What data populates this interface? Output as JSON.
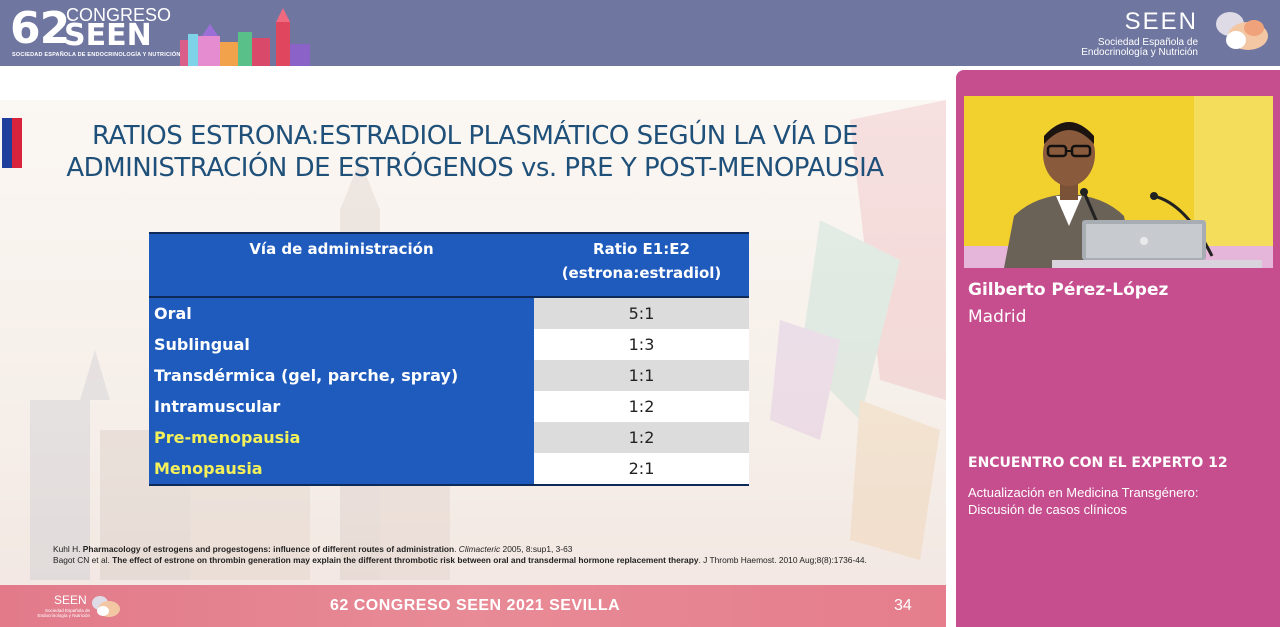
{
  "header": {
    "logo_number": "62",
    "logo_word_1": "CONGRESO",
    "logo_word_2": "SEEN",
    "logo_subtitle": "SOCIEDAD ESPAÑOLA DE ENDOCRINOLOGÍA Y NUTRICIÓN",
    "society_name": "SEEN",
    "society_sub_1": "Sociedad Española de",
    "society_sub_2": "Endocrinología y Nutrición"
  },
  "slide": {
    "title_line_1": "RATIOS ESTRONA:ESTRADIOL PLASMÁTICO SEGÚN LA VÍA DE",
    "title_line_2": "ADMINISTRACIÓN DE ESTRÓGENOS vs. PRE Y POST-MENOPAUSIA",
    "table": {
      "header_route": "Vía de administración",
      "header_ratio_1": "Ratio E1:E2",
      "header_ratio_2": "(estrona:estradiol)",
      "rows": [
        {
          "route": "Oral",
          "ratio": "5:1"
        },
        {
          "route": "Sublingual",
          "ratio": "1:3"
        },
        {
          "route": "Transdérmica (gel, parche, spray)",
          "ratio": "1:1"
        },
        {
          "route": "Intramuscular",
          "ratio": "1:2"
        },
        {
          "route": "Pre-menopausia",
          "ratio": "1:2"
        },
        {
          "route": "Menopausia",
          "ratio": "2:1"
        }
      ]
    },
    "references": {
      "ref1_author": "Kuhl H.",
      "ref1_title": "Pharmacology of estrogens and progestogens: influence of different routes of administration",
      "ref1_journal": "Climacteric",
      "ref1_details": "2005, 8:sup1, 3-63",
      "ref2_author": "Bagot CN et al.",
      "ref2_title": "The effect of estrone on thrombin generation may explain the different thrombotic risk between oral and transdermal hormone replacement therapy",
      "ref2_details": "J Thromb Haemost. 2010 Aug;8(8):1736-44."
    },
    "footer": {
      "title": "62 CONGRESO SEEN 2021 SEVILLA",
      "page": "34",
      "seen": "SEEN",
      "seen_sub": "Sociedad Española de Endocrinología y Nutrición"
    }
  },
  "side_panel": {
    "speaker_name": "Gilberto Pérez-López",
    "speaker_city": "Madrid",
    "session_title": "ENCUENTRO CON EL EXPERTO 12",
    "session_topic_1": "Actualización en Medicina Transgénero:",
    "session_topic_2": "Discusión de casos clínicos"
  },
  "colors": {
    "header_bg": "#6f76a0",
    "table_blue": "#1f5bbd",
    "highlight_yellow": "#f4f05a",
    "title_blue": "#1f5079",
    "side_panel": "#c64d8e",
    "footer_pink": "#e88b96"
  }
}
